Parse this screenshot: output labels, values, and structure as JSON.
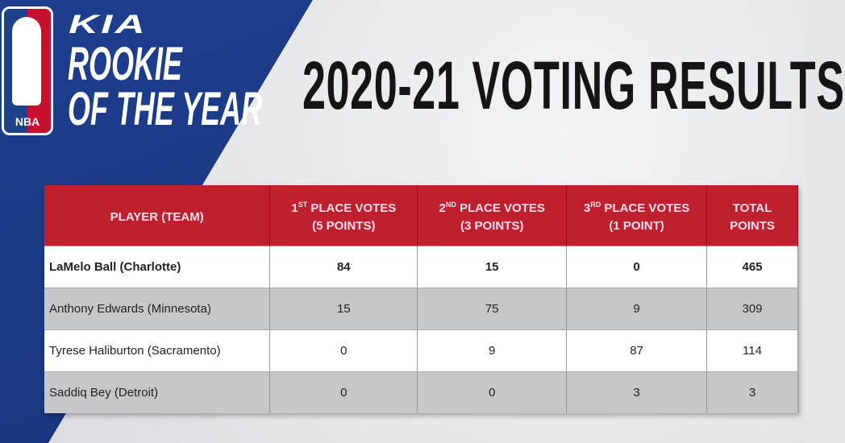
{
  "branding": {
    "logo_text": "NBA",
    "sponsor": "KIA",
    "award_line1": "ROOKIE",
    "award_line2": "OF THE YEAR"
  },
  "title": "2020-21 VOTING RESULTS",
  "colors": {
    "header_red": "#c0202e",
    "blue": "#1d3f8f"
  },
  "table": {
    "headers": [
      {
        "pre": "",
        "sup": "",
        "line1": "PLAYER (TEAM)",
        "line2": ""
      },
      {
        "pre": "1",
        "sup": "ST",
        "line1": " PLACE VOTES",
        "line2": "(5 POINTS)"
      },
      {
        "pre": "2",
        "sup": "ND",
        "line1": " PLACE VOTES",
        "line2": "(3 POINTS)"
      },
      {
        "pre": "3",
        "sup": "RD",
        "line1": " PLACE VOTES",
        "line2": "(1 POINT)"
      },
      {
        "pre": "",
        "sup": "",
        "line1": "TOTAL",
        "line2": "POINTS"
      }
    ],
    "rows": [
      [
        "LaMelo Ball (Charlotte)",
        "84",
        "15",
        "0",
        "465"
      ],
      [
        "Anthony Edwards (Minnesota)",
        "15",
        "75",
        "9",
        "309"
      ],
      [
        "Tyrese Haliburton (Sacramento)",
        "0",
        "9",
        "87",
        "114"
      ],
      [
        "Saddiq Bey (Detroit)",
        "0",
        "0",
        "3",
        "3"
      ]
    ]
  }
}
